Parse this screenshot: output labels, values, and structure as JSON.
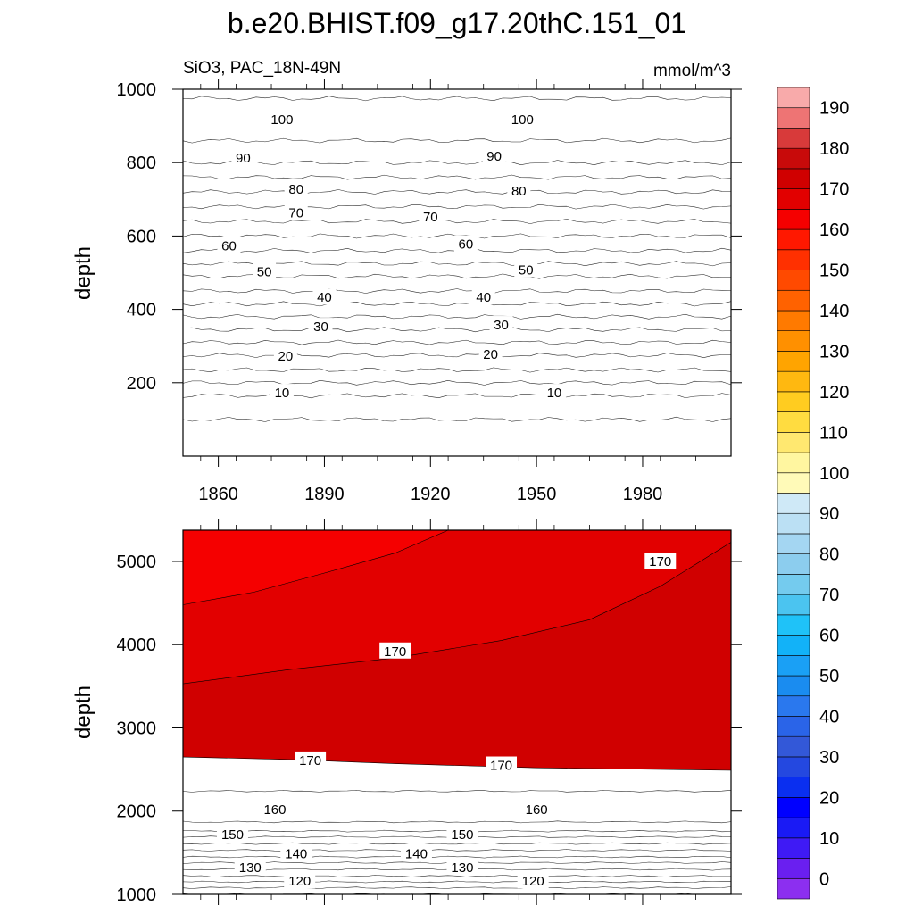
{
  "title": "b.e20.BHIST.f09_g17.20thC.151_01",
  "chart_data": {
    "type": "heatmap",
    "variable": "SiO3, PAC_18N-49N",
    "units": "mmol/m^3",
    "colorbar": {
      "levels": [
        0,
        5,
        10,
        15,
        20,
        25,
        30,
        35,
        40,
        45,
        50,
        55,
        60,
        65,
        70,
        75,
        80,
        85,
        90,
        95,
        100,
        105,
        110,
        115,
        120,
        125,
        130,
        135,
        140,
        145,
        150,
        155,
        160,
        165,
        170,
        175,
        180,
        185,
        190,
        195
      ],
      "tick_labels": [
        "0",
        "10",
        "20",
        "30",
        "40",
        "50",
        "60",
        "70",
        "80",
        "90",
        "100",
        "110",
        "120",
        "130",
        "140",
        "150",
        "160",
        "170",
        "180",
        "190"
      ],
      "colors": [
        "#8c2ff0",
        "#6a1ff0",
        "#3f1af5",
        "#1a1af5",
        "#0000ff",
        "#0a2ff0",
        "#2448e0",
        "#3358d8",
        "#2a64e8",
        "#2a78ee",
        "#1a8cf0",
        "#1aa0f5",
        "#12b2f8",
        "#1fc2f8",
        "#4bc4f0",
        "#74cbee",
        "#8ccdee",
        "#a4d6f2",
        "#bbe0f4",
        "#cfe9f7",
        "#fffab8",
        "#fff6a0",
        "#ffe870",
        "#ffdc40",
        "#ffcc20",
        "#ffb810",
        "#ffa400",
        "#ff9000",
        "#ff7a00",
        "#ff6200",
        "#ff4a00",
        "#ff3000",
        "#ff1800",
        "#f50000",
        "#e20000",
        "#d00000",
        "#c80a0a",
        "#d83a3a",
        "#ee7474",
        "#f8aaaa"
      ]
    },
    "panels": [
      {
        "name": "upper",
        "xlabel": "",
        "ylabel": "depth",
        "xlim": [
          1850,
          2005
        ],
        "ylim": [
          1000,
          0
        ],
        "xticks": [
          1860,
          1890,
          1920,
          1950,
          1980
        ],
        "xtick_labels": [
          "1860",
          "1890",
          "1920",
          "1950",
          "1980"
        ],
        "yticks": [
          200,
          400,
          600,
          800,
          1000
        ],
        "ytick_labels": [
          "200",
          "400",
          "600",
          "800",
          "1000"
        ],
        "depth_levels": [
          0,
          160,
          170,
          230,
          240,
          300,
          320,
          380,
          390,
          440,
          460,
          520,
          530,
          590,
          600,
          650,
          670,
          720,
          740,
          800,
          830,
          860,
          870,
          960,
          1000
        ],
        "contour_values": [
          5,
          10,
          15,
          20,
          25,
          30,
          35,
          40,
          45,
          50,
          55,
          60,
          65,
          70,
          75,
          80,
          85,
          90,
          95,
          100,
          105
        ],
        "contour_depths": [
          100,
          165,
          200,
          235,
          275,
          310,
          345,
          380,
          415,
          450,
          490,
          525,
          560,
          600,
          640,
          680,
          720,
          760,
          800,
          860,
          975
        ],
        "contour_labels": [
          {
            "text": "10",
            "year": 1878,
            "depth": 175
          },
          {
            "text": "10",
            "year": 1955,
            "depth": 175
          },
          {
            "text": "20",
            "year": 1879,
            "depth": 275
          },
          {
            "text": "20",
            "year": 1937,
            "depth": 280
          },
          {
            "text": "30",
            "year": 1889,
            "depth": 355
          },
          {
            "text": "30",
            "year": 1940,
            "depth": 360
          },
          {
            "text": "40",
            "year": 1890,
            "depth": 435
          },
          {
            "text": "40",
            "year": 1935,
            "depth": 435
          },
          {
            "text": "50",
            "year": 1873,
            "depth": 505
          },
          {
            "text": "50",
            "year": 1947,
            "depth": 510
          },
          {
            "text": "60",
            "year": 1863,
            "depth": 575
          },
          {
            "text": "60",
            "year": 1930,
            "depth": 580
          },
          {
            "text": "70",
            "year": 1882,
            "depth": 665
          },
          {
            "text": "70",
            "year": 1920,
            "depth": 655
          },
          {
            "text": "80",
            "year": 1882,
            "depth": 730
          },
          {
            "text": "80",
            "year": 1945,
            "depth": 725
          },
          {
            "text": "90",
            "year": 1867,
            "depth": 815
          },
          {
            "text": "90",
            "year": 1938,
            "depth": 820
          },
          {
            "text": "100",
            "year": 1878,
            "depth": 920
          },
          {
            "text": "100",
            "year": 1946,
            "depth": 920
          }
        ]
      },
      {
        "name": "lower",
        "xlabel": "",
        "ylabel": "depth",
        "xlim": [
          1850,
          2005
        ],
        "ylim": [
          5375,
          1000
        ],
        "xticks": [
          1860,
          1890,
          1920,
          1950,
          1980
        ],
        "yticks": [
          1000,
          2000,
          3000,
          4000,
          5000
        ],
        "ytick_labels": [
          "1000",
          "2000",
          "3000",
          "4000",
          "5000"
        ],
        "depth_levels": [
          1000,
          1150,
          1250,
          1350,
          1450,
          1550,
          1650,
          1750,
          1850,
          1950,
          2250
        ],
        "contour_values": [
          105,
          110,
          115,
          120,
          125,
          130,
          135,
          140,
          145,
          150,
          155,
          160,
          165
        ],
        "contour_depths": [
          1000,
          1080,
          1150,
          1220,
          1300,
          1380,
          1450,
          1530,
          1610,
          1690,
          1760,
          1870,
          2240
        ],
        "contour_labels": [
          {
            "text": "120",
            "year": 1883,
            "depth": 1170
          },
          {
            "text": "120",
            "year": 1949,
            "depth": 1170
          },
          {
            "text": "130",
            "year": 1869,
            "depth": 1330
          },
          {
            "text": "130",
            "year": 1929,
            "depth": 1330
          },
          {
            "text": "140",
            "year": 1882,
            "depth": 1500
          },
          {
            "text": "140",
            "year": 1916,
            "depth": 1500
          },
          {
            "text": "150",
            "year": 1864,
            "depth": 1730
          },
          {
            "text": "150",
            "year": 1929,
            "depth": 1730
          },
          {
            "text": "160",
            "year": 1876,
            "depth": 2030
          },
          {
            "text": "160",
            "year": 1950,
            "depth": 2030
          },
          {
            "text": "170",
            "year": 1886,
            "depth": 2620
          },
          {
            "text": "170",
            "year": 1940,
            "depth": 2560
          },
          {
            "text": "170",
            "year": 1910,
            "depth": 3930
          },
          {
            "text": "170",
            "year": 1985,
            "depth": 5010
          }
        ]
      }
    ]
  }
}
